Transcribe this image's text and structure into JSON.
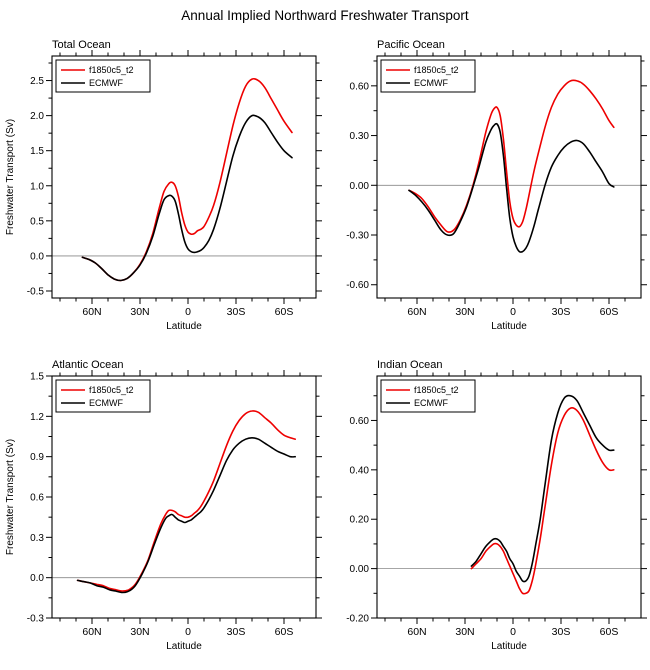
{
  "title": "Annual Implied Northward Freshwater Transport",
  "chart_data": [
    {
      "type": "line",
      "title": "Total Ocean",
      "xlabel": "Latitude",
      "ylabel": "Freshwater Transport (Sv)",
      "xlim": [
        85,
        -80
      ],
      "ylim": [
        -0.6,
        2.85
      ],
      "xticks": [
        {
          "v": 60,
          "label": "60N"
        },
        {
          "v": 30,
          "label": "30N"
        },
        {
          "v": 0,
          "label": "0"
        },
        {
          "v": -30,
          "label": "30S"
        },
        {
          "v": -60,
          "label": "60S"
        }
      ],
      "yticks": [
        {
          "v": -0.5,
          "label": "-0.5"
        },
        {
          "v": 0.0,
          "label": "0.0"
        },
        {
          "v": 0.5,
          "label": "0.5"
        },
        {
          "v": 1.0,
          "label": "1.0"
        },
        {
          "v": 1.5,
          "label": "1.5"
        },
        {
          "v": 2.0,
          "label": "2.0"
        },
        {
          "v": 2.5,
          "label": "2.5"
        }
      ],
      "zero_line": true,
      "grid": false,
      "legend_position": "top-left",
      "series": [
        {
          "name": "f1850c5_t2",
          "color": "#ee0000",
          "x": [
            66,
            62,
            58,
            54,
            50,
            46,
            42,
            38,
            34,
            30,
            26,
            22,
            18,
            15,
            12,
            10,
            8,
            6,
            4,
            2,
            0,
            -2,
            -4,
            -6,
            -8,
            -10,
            -13,
            -16,
            -20,
            -24,
            -28,
            -32,
            -36,
            -40,
            -44,
            -48,
            -52,
            -56,
            -60,
            -65
          ],
          "y": [
            -0.02,
            -0.05,
            -0.1,
            -0.18,
            -0.27,
            -0.33,
            -0.35,
            -0.32,
            -0.24,
            -0.12,
            0.06,
            0.32,
            0.68,
            0.92,
            1.03,
            1.05,
            1.0,
            0.85,
            0.62,
            0.44,
            0.34,
            0.31,
            0.32,
            0.36,
            0.38,
            0.42,
            0.55,
            0.72,
            1.05,
            1.45,
            1.85,
            2.18,
            2.42,
            2.52,
            2.5,
            2.4,
            2.24,
            2.08,
            1.92,
            1.76
          ]
        },
        {
          "name": "ECMWF",
          "color": "#000000",
          "x": [
            66,
            62,
            58,
            54,
            50,
            46,
            42,
            38,
            34,
            30,
            26,
            22,
            18,
            15,
            12,
            10,
            8,
            6,
            4,
            2,
            0,
            -2,
            -4,
            -6,
            -8,
            -10,
            -13,
            -16,
            -20,
            -24,
            -28,
            -32,
            -36,
            -40,
            -44,
            -48,
            -52,
            -56,
            -60,
            -65
          ],
          "y": [
            -0.02,
            -0.05,
            -0.1,
            -0.18,
            -0.27,
            -0.33,
            -0.35,
            -0.32,
            -0.24,
            -0.13,
            0.04,
            0.28,
            0.6,
            0.8,
            0.86,
            0.85,
            0.78,
            0.6,
            0.38,
            0.2,
            0.1,
            0.06,
            0.05,
            0.06,
            0.08,
            0.12,
            0.22,
            0.38,
            0.68,
            1.05,
            1.42,
            1.7,
            1.9,
            2.0,
            1.98,
            1.9,
            1.76,
            1.62,
            1.5,
            1.4
          ]
        }
      ]
    },
    {
      "type": "line",
      "title": "Pacific Ocean",
      "xlabel": "Latitude",
      "ylabel": "",
      "xlim": [
        85,
        -80
      ],
      "ylim": [
        -0.68,
        0.78
      ],
      "xticks": [
        {
          "v": 60,
          "label": "60N"
        },
        {
          "v": 30,
          "label": "30N"
        },
        {
          "v": 0,
          "label": "0"
        },
        {
          "v": -30,
          "label": "30S"
        },
        {
          "v": -60,
          "label": "60S"
        }
      ],
      "yticks": [
        {
          "v": -0.6,
          "label": "-0.60"
        },
        {
          "v": -0.3,
          "label": "-0.30"
        },
        {
          "v": 0.0,
          "label": "0.00"
        },
        {
          "v": 0.3,
          "label": "0.30"
        },
        {
          "v": 0.6,
          "label": "0.60"
        }
      ],
      "zero_line": true,
      "grid": false,
      "legend_position": "top-left",
      "series": [
        {
          "name": "f1850c5_t2",
          "color": "#ee0000",
          "x": [
            65,
            61,
            57,
            53,
            49,
            45,
            41,
            37,
            33,
            29,
            25,
            21,
            17,
            14,
            12,
            10,
            8,
            6,
            4,
            2,
            0,
            -2,
            -4,
            -6,
            -8,
            -10,
            -13,
            -16,
            -20,
            -24,
            -28,
            -32,
            -36,
            -40,
            -44,
            -48,
            -52,
            -56,
            -60,
            -63
          ],
          "y": [
            -0.03,
            -0.05,
            -0.08,
            -0.13,
            -0.19,
            -0.24,
            -0.28,
            -0.27,
            -0.21,
            -0.12,
            0.0,
            0.15,
            0.32,
            0.42,
            0.46,
            0.47,
            0.42,
            0.28,
            0.08,
            -0.1,
            -0.2,
            -0.24,
            -0.25,
            -0.22,
            -0.15,
            -0.06,
            0.08,
            0.2,
            0.35,
            0.47,
            0.55,
            0.6,
            0.63,
            0.63,
            0.61,
            0.57,
            0.52,
            0.46,
            0.39,
            0.35
          ]
        },
        {
          "name": "ECMWF",
          "color": "#000000",
          "x": [
            65,
            61,
            57,
            53,
            49,
            45,
            41,
            37,
            33,
            29,
            25,
            21,
            17,
            14,
            12,
            10,
            8,
            6,
            4,
            2,
            0,
            -2,
            -4,
            -6,
            -8,
            -10,
            -13,
            -16,
            -20,
            -24,
            -28,
            -32,
            -36,
            -40,
            -44,
            -48,
            -52,
            -56,
            -60,
            -63
          ],
          "y": [
            -0.03,
            -0.06,
            -0.1,
            -0.15,
            -0.21,
            -0.27,
            -0.3,
            -0.29,
            -0.22,
            -0.13,
            -0.01,
            0.12,
            0.26,
            0.33,
            0.36,
            0.37,
            0.32,
            0.18,
            -0.02,
            -0.2,
            -0.31,
            -0.37,
            -0.4,
            -0.4,
            -0.38,
            -0.34,
            -0.25,
            -0.14,
            0.0,
            0.11,
            0.18,
            0.23,
            0.26,
            0.27,
            0.25,
            0.2,
            0.14,
            0.08,
            0.01,
            -0.01
          ]
        }
      ]
    },
    {
      "type": "line",
      "title": "Atlantic Ocean",
      "xlabel": "Latitude",
      "ylabel": "Freshwater Transport (Sv)",
      "xlim": [
        85,
        -80
      ],
      "ylim": [
        -0.3,
        1.5
      ],
      "xticks": [
        {
          "v": 60,
          "label": "60N"
        },
        {
          "v": 30,
          "label": "30N"
        },
        {
          "v": 0,
          "label": "0"
        },
        {
          "v": -30,
          "label": "30S"
        },
        {
          "v": -60,
          "label": "60S"
        }
      ],
      "yticks": [
        {
          "v": -0.3,
          "label": "-0.3"
        },
        {
          "v": 0.0,
          "label": "0.0"
        },
        {
          "v": 0.3,
          "label": "0.3"
        },
        {
          "v": 0.6,
          "label": "0.6"
        },
        {
          "v": 0.9,
          "label": "0.9"
        },
        {
          "v": 1.2,
          "label": "1.2"
        },
        {
          "v": 1.5,
          "label": "1.5"
        }
      ],
      "zero_line": true,
      "grid": false,
      "legend_position": "top-left",
      "series": [
        {
          "name": "f1850c5_t2",
          "color": "#ee0000",
          "x": [
            69,
            65,
            61,
            57,
            53,
            49,
            45,
            41,
            37,
            33,
            29,
            25,
            21,
            17,
            14,
            12,
            10,
            8,
            6,
            4,
            2,
            0,
            -2,
            -4,
            -6,
            -8,
            -10,
            -13,
            -16,
            -20,
            -24,
            -28,
            -32,
            -36,
            -40,
            -44,
            -48,
            -52,
            -56,
            -60,
            -64,
            -67
          ],
          "y": [
            -0.02,
            -0.03,
            -0.04,
            -0.05,
            -0.06,
            -0.08,
            -0.09,
            -0.1,
            -0.09,
            -0.05,
            0.03,
            0.13,
            0.27,
            0.4,
            0.47,
            0.5,
            0.5,
            0.49,
            0.47,
            0.46,
            0.45,
            0.45,
            0.46,
            0.48,
            0.5,
            0.53,
            0.57,
            0.64,
            0.72,
            0.85,
            0.98,
            1.09,
            1.17,
            1.22,
            1.24,
            1.23,
            1.19,
            1.15,
            1.1,
            1.06,
            1.04,
            1.03
          ]
        },
        {
          "name": "ECMWF",
          "color": "#000000",
          "x": [
            69,
            65,
            61,
            57,
            53,
            49,
            45,
            41,
            37,
            33,
            29,
            25,
            21,
            17,
            14,
            12,
            10,
            8,
            6,
            4,
            2,
            0,
            -2,
            -4,
            -6,
            -8,
            -10,
            -13,
            -16,
            -20,
            -24,
            -28,
            -32,
            -36,
            -40,
            -44,
            -48,
            -52,
            -56,
            -60,
            -64,
            -67
          ],
          "y": [
            -0.02,
            -0.03,
            -0.04,
            -0.06,
            -0.07,
            -0.09,
            -0.1,
            -0.11,
            -0.1,
            -0.06,
            0.02,
            0.12,
            0.25,
            0.37,
            0.44,
            0.46,
            0.47,
            0.45,
            0.43,
            0.42,
            0.41,
            0.42,
            0.43,
            0.45,
            0.47,
            0.49,
            0.52,
            0.58,
            0.65,
            0.76,
            0.87,
            0.95,
            1.0,
            1.03,
            1.04,
            1.03,
            1.0,
            0.97,
            0.94,
            0.92,
            0.9,
            0.9
          ]
        }
      ]
    },
    {
      "type": "line",
      "title": "Indian Ocean",
      "xlabel": "Latitude",
      "ylabel": "",
      "xlim": [
        85,
        -80
      ],
      "ylim": [
        -0.2,
        0.78
      ],
      "xticks": [
        {
          "v": 60,
          "label": "60N"
        },
        {
          "v": 30,
          "label": "30N"
        },
        {
          "v": 0,
          "label": "0"
        },
        {
          "v": -30,
          "label": "30S"
        },
        {
          "v": -60,
          "label": "60S"
        }
      ],
      "yticks": [
        {
          "v": -0.2,
          "label": "-0.20"
        },
        {
          "v": 0.0,
          "label": "0.00"
        },
        {
          "v": 0.2,
          "label": "0.20"
        },
        {
          "v": 0.4,
          "label": "0.40"
        },
        {
          "v": 0.6,
          "label": "0.60"
        }
      ],
      "zero_line": true,
      "grid": false,
      "legend_position": "top-left",
      "series": [
        {
          "name": "f1850c5_t2",
          "color": "#ee0000",
          "x": [
            26,
            23,
            20,
            17,
            14,
            12,
            10,
            8,
            6,
            4,
            2,
            0,
            -2,
            -4,
            -6,
            -8,
            -10,
            -12,
            -14,
            -17,
            -20,
            -24,
            -28,
            -32,
            -36,
            -40,
            -44,
            -48,
            -52,
            -56,
            -60,
            -63
          ],
          "y": [
            0.0,
            0.02,
            0.04,
            0.07,
            0.09,
            0.1,
            0.1,
            0.09,
            0.07,
            0.04,
            0.01,
            -0.02,
            -0.05,
            -0.08,
            -0.1,
            -0.1,
            -0.09,
            -0.05,
            0.01,
            0.12,
            0.25,
            0.42,
            0.55,
            0.62,
            0.65,
            0.64,
            0.6,
            0.54,
            0.48,
            0.43,
            0.4,
            0.4
          ]
        },
        {
          "name": "ECMWF",
          "color": "#000000",
          "x": [
            26,
            23,
            20,
            17,
            14,
            12,
            10,
            8,
            6,
            4,
            2,
            0,
            -2,
            -4,
            -6,
            -8,
            -10,
            -12,
            -14,
            -17,
            -20,
            -24,
            -28,
            -32,
            -36,
            -40,
            -44,
            -48,
            -52,
            -56,
            -60,
            -63
          ],
          "y": [
            0.01,
            0.03,
            0.06,
            0.09,
            0.11,
            0.12,
            0.12,
            0.11,
            0.09,
            0.07,
            0.04,
            0.02,
            -0.01,
            -0.03,
            -0.05,
            -0.05,
            -0.03,
            0.02,
            0.09,
            0.2,
            0.34,
            0.52,
            0.63,
            0.69,
            0.7,
            0.68,
            0.63,
            0.58,
            0.53,
            0.5,
            0.48,
            0.48
          ]
        }
      ]
    }
  ]
}
